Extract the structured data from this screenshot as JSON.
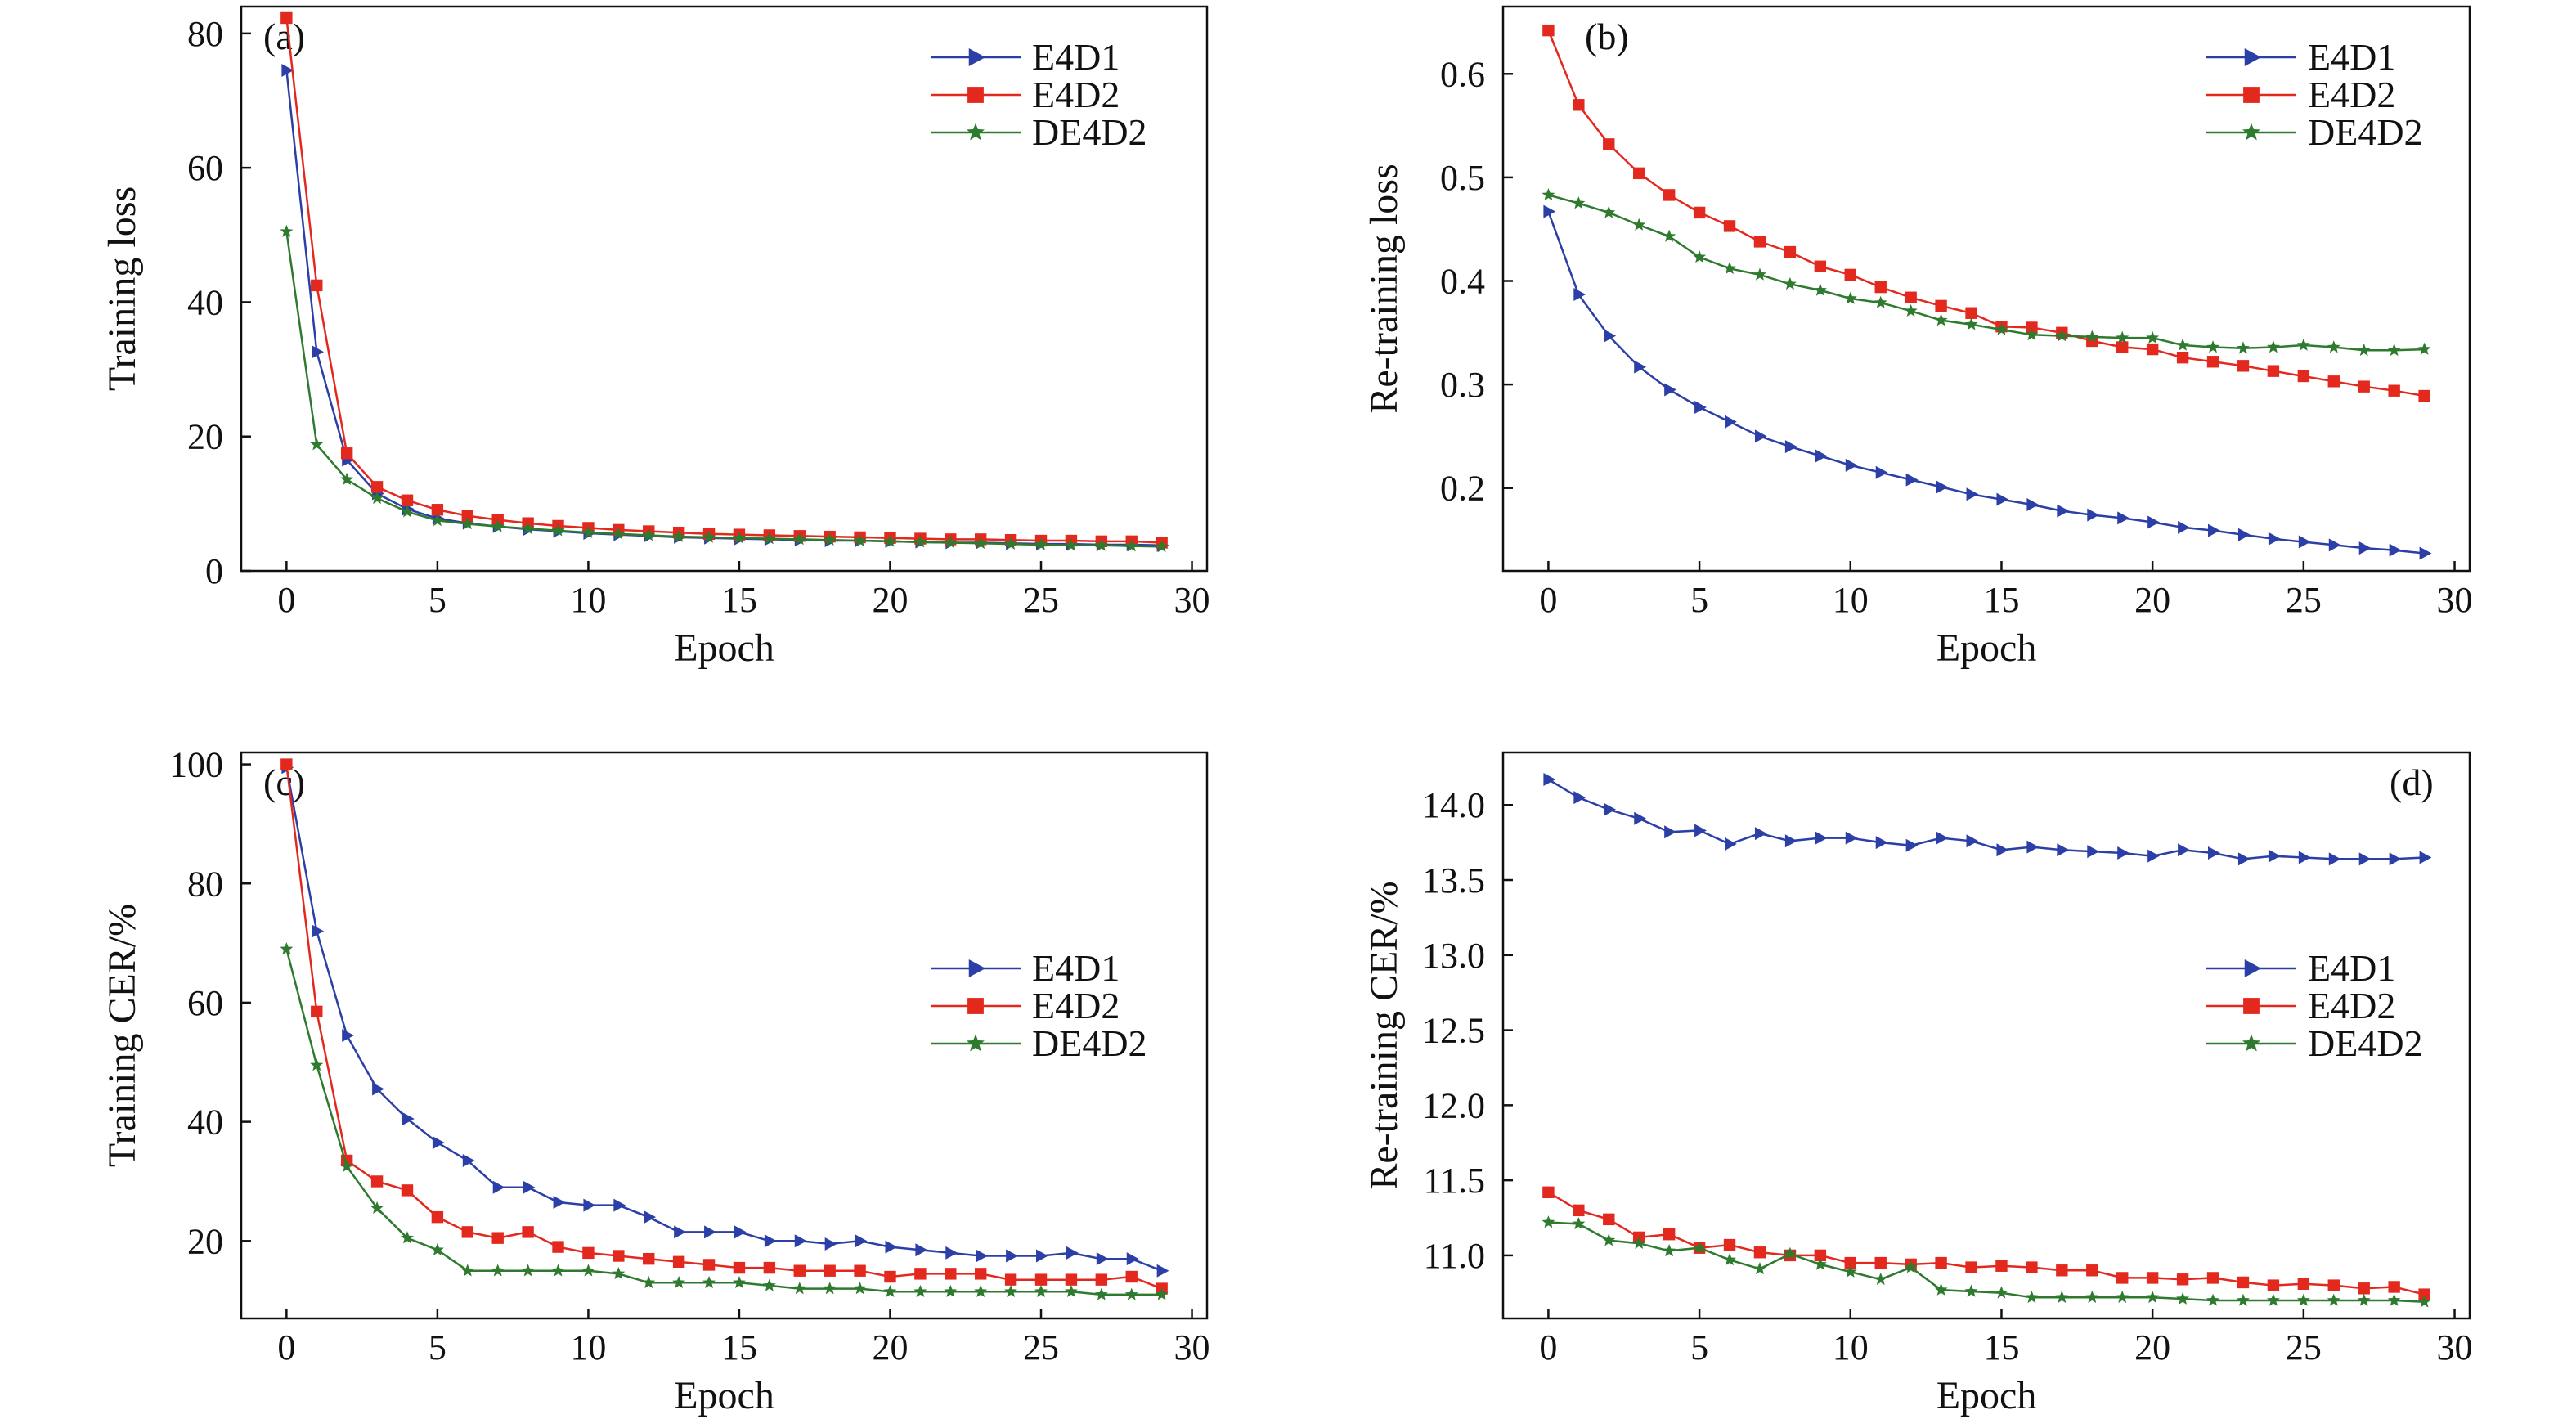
{
  "colors": {
    "E4D1": "#2b3fa6",
    "E4D2": "#e3281e",
    "DE4D2": "#2e7a2e"
  },
  "chart_data": [
    {
      "panel": "(a)",
      "type": "line",
      "xlabel": "Epoch",
      "ylabel": "Training loss",
      "xlim": [
        -1.5,
        30.5
      ],
      "ylim": [
        0,
        84
      ],
      "xticks": [
        0,
        5,
        10,
        15,
        20,
        25,
        30
      ],
      "yticks": [
        0,
        20,
        40,
        60,
        80
      ],
      "ytick_labels": [
        "0",
        "20",
        "40",
        "60",
        "80"
      ],
      "legend_position": "top-right",
      "grid": false,
      "x": [
        0,
        1,
        2,
        3,
        4,
        5,
        6,
        7,
        8,
        9,
        10,
        11,
        12,
        13,
        14,
        15,
        16,
        17,
        18,
        19,
        20,
        21,
        22,
        23,
        24,
        25,
        26,
        27,
        28,
        29
      ],
      "series": [
        {
          "name": "E4D1",
          "marker": "triangle-right",
          "values": [
            74.5,
            32.6,
            16.5,
            11.5,
            9.2,
            7.8,
            7.1,
            6.6,
            6.2,
            5.9,
            5.6,
            5.4,
            5.2,
            5.0,
            4.9,
            4.8,
            4.7,
            4.6,
            4.5,
            4.5,
            4.4,
            4.3,
            4.2,
            4.2,
            4.1,
            4.0,
            4.0,
            3.9,
            3.9,
            3.8
          ]
        },
        {
          "name": "E4D2",
          "marker": "square",
          "values": [
            82.3,
            42.5,
            17.5,
            12.5,
            10.5,
            9.1,
            8.2,
            7.6,
            7.1,
            6.7,
            6.4,
            6.1,
            5.9,
            5.7,
            5.5,
            5.4,
            5.3,
            5.2,
            5.1,
            5.0,
            4.9,
            4.8,
            4.7,
            4.7,
            4.6,
            4.5,
            4.5,
            4.4,
            4.4,
            4.2
          ]
        },
        {
          "name": "DE4D2",
          "marker": "star",
          "values": [
            50.5,
            18.8,
            13.6,
            10.8,
            8.8,
            7.5,
            7.0,
            6.6,
            6.3,
            6.0,
            5.7,
            5.5,
            5.3,
            5.1,
            5.0,
            4.9,
            4.8,
            4.7,
            4.6,
            4.5,
            4.4,
            4.3,
            4.2,
            4.1,
            4.0,
            3.9,
            3.8,
            3.8,
            3.7,
            3.6
          ]
        }
      ]
    },
    {
      "panel": "(b)",
      "type": "line",
      "xlabel": "Epoch",
      "ylabel": "Re-training loss",
      "xlim": [
        -1.5,
        30.5
      ],
      "ylim": [
        0.12,
        0.665
      ],
      "xticks": [
        0,
        5,
        10,
        15,
        20,
        25,
        30
      ],
      "yticks": [
        0.2,
        0.3,
        0.4,
        0.5,
        0.6
      ],
      "ytick_labels": [
        "0.2",
        "0.3",
        "0.4",
        "0.5",
        "0.6"
      ],
      "legend_position": "top-right",
      "grid": false,
      "x": [
        0,
        1,
        2,
        3,
        4,
        5,
        6,
        7,
        8,
        9,
        10,
        11,
        12,
        13,
        14,
        15,
        16,
        17,
        18,
        19,
        20,
        21,
        22,
        23,
        24,
        25,
        26,
        27,
        28,
        29
      ],
      "series": [
        {
          "name": "E4D1",
          "marker": "triangle-right",
          "values": [
            0.467,
            0.387,
            0.347,
            0.317,
            0.295,
            0.278,
            0.264,
            0.25,
            0.24,
            0.231,
            0.222,
            0.215,
            0.208,
            0.201,
            0.194,
            0.189,
            0.184,
            0.178,
            0.174,
            0.171,
            0.167,
            0.162,
            0.159,
            0.155,
            0.151,
            0.148,
            0.145,
            0.142,
            0.14,
            0.137
          ]
        },
        {
          "name": "E4D2",
          "marker": "square",
          "values": [
            0.642,
            0.57,
            0.532,
            0.504,
            0.483,
            0.466,
            0.453,
            0.438,
            0.428,
            0.414,
            0.406,
            0.394,
            0.384,
            0.376,
            0.369,
            0.356,
            0.355,
            0.35,
            0.342,
            0.336,
            0.334,
            0.326,
            0.322,
            0.318,
            0.313,
            0.308,
            0.303,
            0.298,
            0.294,
            0.289
          ]
        },
        {
          "name": "DE4D2",
          "marker": "star",
          "values": [
            0.483,
            0.475,
            0.466,
            0.454,
            0.443,
            0.423,
            0.412,
            0.406,
            0.397,
            0.391,
            0.383,
            0.379,
            0.371,
            0.362,
            0.358,
            0.353,
            0.348,
            0.347,
            0.346,
            0.345,
            0.345,
            0.338,
            0.336,
            0.335,
            0.336,
            0.338,
            0.336,
            0.333,
            0.333,
            0.334
          ]
        }
      ]
    },
    {
      "panel": "(c)",
      "type": "line",
      "xlabel": "Epoch",
      "ylabel": "Training CER/%",
      "xlim": [
        -1.5,
        30.5
      ],
      "ylim": [
        7,
        102
      ],
      "xticks": [
        0,
        5,
        10,
        15,
        20,
        25,
        30
      ],
      "yticks": [
        20,
        40,
        60,
        80,
        100
      ],
      "ytick_labels": [
        "20",
        "40",
        "60",
        "80",
        "100"
      ],
      "legend_position": "center-right",
      "grid": false,
      "x": [
        0,
        1,
        2,
        3,
        4,
        5,
        6,
        7,
        8,
        9,
        10,
        11,
        12,
        13,
        14,
        15,
        16,
        17,
        18,
        19,
        20,
        21,
        22,
        23,
        24,
        25,
        26,
        27,
        28,
        29
      ],
      "series": [
        {
          "name": "E4D1",
          "marker": "triangle-right",
          "values": [
            99.5,
            72.0,
            54.5,
            45.5,
            40.5,
            36.5,
            33.5,
            29.0,
            29.0,
            26.5,
            26.0,
            26.0,
            24.0,
            21.5,
            21.5,
            21.5,
            20.0,
            20.0,
            19.5,
            20.0,
            19.0,
            18.5,
            18.0,
            17.5,
            17.5,
            17.5,
            18.0,
            17.0,
            17.0,
            15.0
          ]
        },
        {
          "name": "E4D2",
          "marker": "square",
          "values": [
            100.0,
            58.5,
            33.5,
            30.0,
            28.5,
            24.0,
            21.5,
            20.5,
            21.5,
            19.0,
            18.0,
            17.5,
            17.0,
            16.5,
            16.0,
            15.5,
            15.5,
            15.0,
            15.0,
            15.0,
            14.0,
            14.5,
            14.5,
            14.5,
            13.5,
            13.5,
            13.5,
            13.5,
            14.0,
            12.0
          ]
        },
        {
          "name": "DE4D2",
          "marker": "star",
          "values": [
            69.0,
            49.5,
            32.5,
            25.5,
            20.5,
            18.5,
            15.0,
            15.0,
            15.0,
            15.0,
            15.0,
            14.5,
            13.0,
            13.0,
            13.0,
            13.0,
            12.5,
            12.0,
            12.0,
            12.0,
            11.5,
            11.5,
            11.5,
            11.5,
            11.5,
            11.5,
            11.5,
            11.0,
            11.0,
            11.0
          ]
        }
      ]
    },
    {
      "panel": "(d)",
      "type": "line",
      "xlabel": "Epoch",
      "ylabel": "Re-training CER/%",
      "xlim": [
        -1.5,
        30.5
      ],
      "ylim": [
        10.58,
        14.35
      ],
      "xticks": [
        0,
        5,
        10,
        15,
        20,
        25,
        30
      ],
      "yticks": [
        11.0,
        11.5,
        12.0,
        12.5,
        13.0,
        13.5,
        14.0
      ],
      "ytick_labels": [
        "11.0",
        "11.5",
        "12.0",
        "12.5",
        "13.0",
        "13.5",
        "14.0"
      ],
      "legend_position": "center-right",
      "grid": false,
      "x": [
        0,
        1,
        2,
        3,
        4,
        5,
        6,
        7,
        8,
        9,
        10,
        11,
        12,
        13,
        14,
        15,
        16,
        17,
        18,
        19,
        20,
        21,
        22,
        23,
        24,
        25,
        26,
        27,
        28,
        29
      ],
      "series": [
        {
          "name": "E4D1",
          "marker": "triangle-right",
          "values": [
            14.17,
            14.05,
            13.97,
            13.91,
            13.82,
            13.83,
            13.74,
            13.81,
            13.76,
            13.78,
            13.78,
            13.75,
            13.73,
            13.78,
            13.76,
            13.7,
            13.72,
            13.7,
            13.69,
            13.68,
            13.66,
            13.7,
            13.68,
            13.64,
            13.66,
            13.65,
            13.64,
            13.64,
            13.64,
            13.65
          ]
        },
        {
          "name": "E4D2",
          "marker": "square",
          "values": [
            11.42,
            11.3,
            11.24,
            11.12,
            11.14,
            11.05,
            11.07,
            11.02,
            11.0,
            11.0,
            10.95,
            10.95,
            10.94,
            10.95,
            10.92,
            10.93,
            10.92,
            10.9,
            10.9,
            10.85,
            10.85,
            10.84,
            10.85,
            10.82,
            10.8,
            10.81,
            10.8,
            10.78,
            10.79,
            10.74
          ]
        },
        {
          "name": "DE4D2",
          "marker": "star",
          "values": [
            11.22,
            11.21,
            11.1,
            11.08,
            11.03,
            11.05,
            10.97,
            10.91,
            11.01,
            10.94,
            10.89,
            10.84,
            10.92,
            10.77,
            10.76,
            10.75,
            10.72,
            10.72,
            10.72,
            10.72,
            10.72,
            10.71,
            10.7,
            10.7,
            10.7,
            10.7,
            10.7,
            10.7,
            10.7,
            10.69
          ]
        }
      ]
    }
  ]
}
